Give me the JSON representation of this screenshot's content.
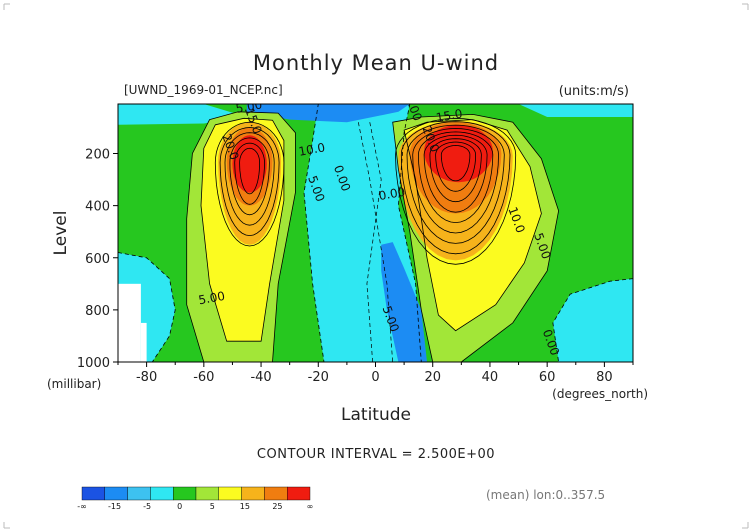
{
  "chart_data": {
    "type": "heatmap",
    "subtype": "filled-contour",
    "title": "Monthly Mean U-wind",
    "file_label": "[UWND_1969-01_NCEP.nc]",
    "units_label": "(units:m/s)",
    "xlabel": "Latitude",
    "x_units": "(degrees_north)",
    "ylabel": "Level",
    "y_units": "(millibar)",
    "x_range": [
      -90,
      90
    ],
    "y_range": [
      1000,
      10
    ],
    "x_ticks": [
      -80,
      -60,
      -40,
      -20,
      0,
      20,
      40,
      60,
      80
    ],
    "y_ticks": [
      200,
      400,
      600,
      800,
      1000
    ],
    "contour_interval_text": "CONTOUR INTERVAL = 2.500E+00",
    "contour_interval": 2.5,
    "averaging_note": "(mean) lon:0..357.5",
    "colorbar": {
      "colors": [
        "#1b53e3",
        "#1c8cf3",
        "#3dc2f0",
        "#2fe7f2",
        "#26c71f",
        "#a2e638",
        "#fbfb20",
        "#f6b31b",
        "#f07d10",
        "#f01c10"
      ],
      "labels": [
        "-∞",
        "-15",
        "-5",
        "0",
        "5",
        "15",
        "25",
        "∞"
      ]
    },
    "bands": [
      {
        "name": "negative-wind",
        "level": 0,
        "color": "#2fe7f2"
      },
      {
        "name": "weak-westerly",
        "level": 0,
        "color": "#26c71f"
      },
      {
        "name": "westerly-5",
        "level": 5,
        "color": "#a2e638"
      },
      {
        "name": "westerly-10",
        "level": 10,
        "color": "#fbfb20"
      },
      {
        "name": "westerly-15",
        "level": 15,
        "color": "#f6b31b"
      },
      {
        "name": "westerly-20",
        "level": 20,
        "color": "#f07d10"
      },
      {
        "name": "westerly-25",
        "level": 25,
        "color": "#f01c10"
      }
    ],
    "jets": [
      {
        "name": "southern-jet",
        "center_lat": -42,
        "center_level": 230,
        "max_speed_approx": 30
      },
      {
        "name": "northern-jet",
        "center_lat": 28,
        "center_level": 180,
        "max_speed_approx": 40
      }
    ],
    "contour_labels": [
      {
        "text": "5.00",
        "lat": -44,
        "level": 35
      },
      {
        "text": "5.00",
        "lat": 12,
        "level": 30
      },
      {
        "text": "15.0",
        "lat": -44,
        "level": 80
      },
      {
        "text": "15.0",
        "lat": 26,
        "level": 70
      },
      {
        "text": "20.0",
        "lat": -52,
        "level": 180
      },
      {
        "text": "20.0",
        "lat": 18,
        "level": 150
      },
      {
        "text": "10.0",
        "lat": -22,
        "level": 200
      },
      {
        "text": "5.00",
        "lat": -22,
        "level": 340
      },
      {
        "text": "0.00",
        "lat": -13,
        "level": 300
      },
      {
        "text": "0.00",
        "lat": 6,
        "level": 370
      },
      {
        "text": "10.0",
        "lat": 48,
        "level": 460
      },
      {
        "text": "5.00",
        "lat": 57,
        "level": 560
      },
      {
        "text": "5.00",
        "lat": -57,
        "level": 770
      },
      {
        "text": "5.00",
        "lat": 4,
        "level": 840
      },
      {
        "text": "0.00",
        "lat": 60,
        "level": 930
      }
    ]
  }
}
